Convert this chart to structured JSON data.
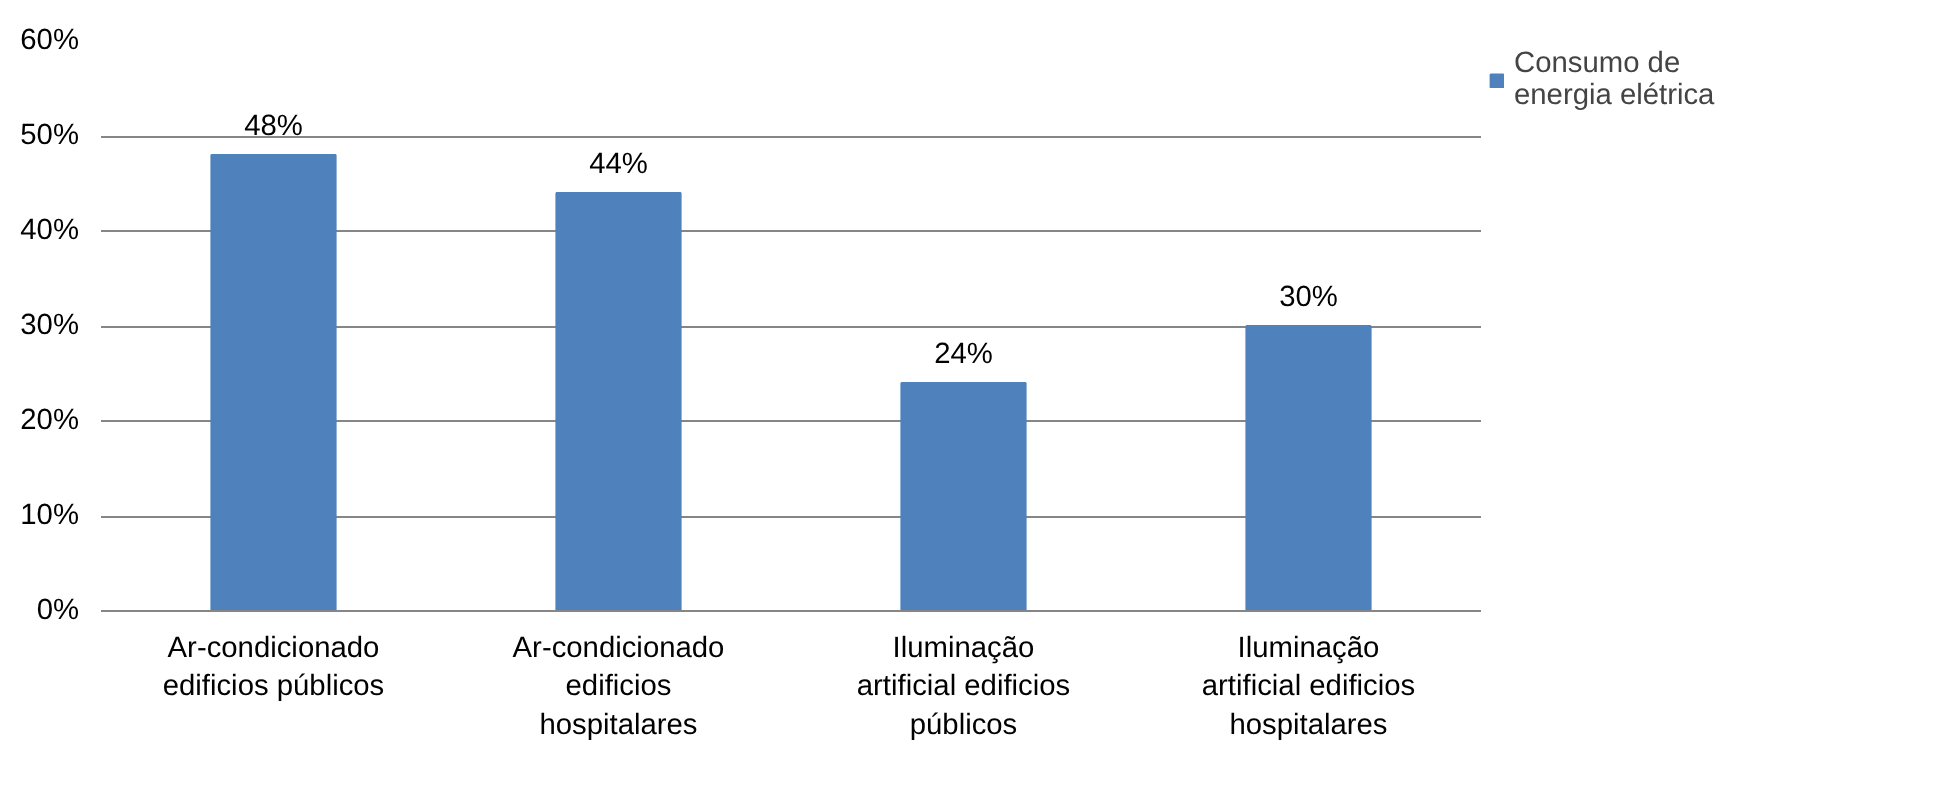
{
  "chart_data": {
    "type": "bar",
    "categories": [
      "Ar-condicionado edificios públicos",
      "Ar-condicionado edificios hospitalares",
      "Iluminação artificial edificios públicos",
      "Iluminação artificial edificios hospitalares"
    ],
    "series": [
      {
        "name": "Consumo de energia elétrica",
        "color": "#4f81bd",
        "values": [
          48,
          44,
          24,
          30
        ]
      }
    ],
    "value_labels": [
      "48%",
      "44%",
      "24%",
      "30%"
    ],
    "ylim": [
      0,
      60
    ],
    "yticks": [
      {
        "value": 0,
        "label": "0%"
      },
      {
        "value": 10,
        "label": "10%"
      },
      {
        "value": 20,
        "label": "20%"
      },
      {
        "value": 30,
        "label": "30%"
      },
      {
        "value": 40,
        "label": "40%"
      },
      {
        "value": 50,
        "label": "50%"
      },
      {
        "value": 60,
        "label": "60%"
      }
    ],
    "grid": "y",
    "legend": "right"
  }
}
